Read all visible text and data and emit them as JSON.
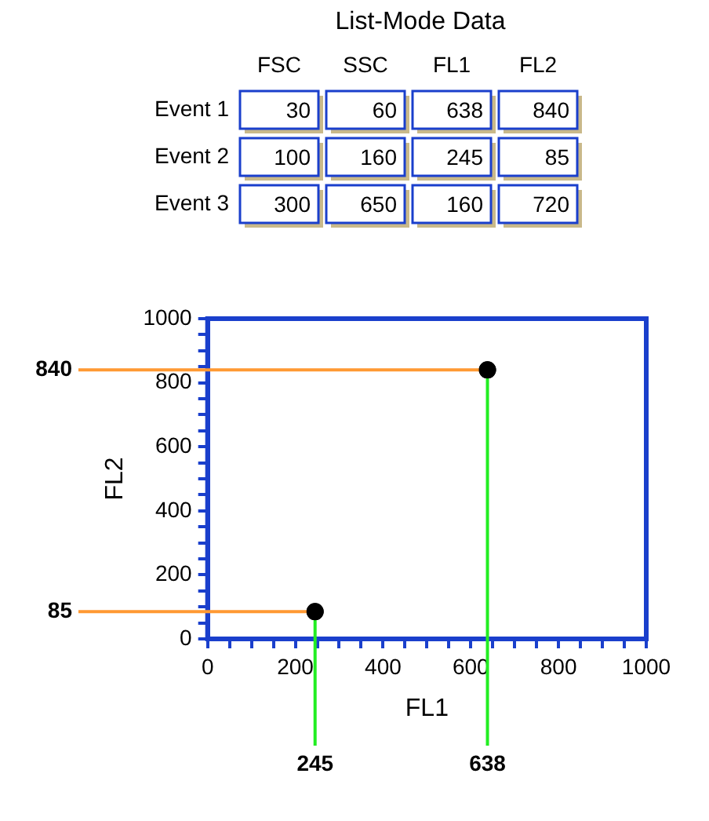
{
  "chart_data": [
    {
      "type": "heatmap",
      "title": "List-Mode Data",
      "categories": [
        "FSC",
        "SSC",
        "FL1",
        "FL2"
      ],
      "y_categories": [
        "Event 1",
        "Event 2",
        "Event 3"
      ],
      "cells": [
        [
          30,
          60,
          638,
          840
        ],
        [
          100,
          160,
          245,
          85
        ],
        [
          300,
          650,
          160,
          720
        ]
      ],
      "data_labels": true
    },
    {
      "type": "scatter",
      "xlabel": "FL1",
      "ylabel": "FL2",
      "x": [
        638,
        245
      ],
      "values": [
        840,
        85
      ],
      "color": "#000000",
      "marker": "circle",
      "xlim": [
        0,
        1000
      ],
      "ylim": [
        0,
        1000
      ],
      "xticks": [
        0,
        {
          "value": 50,
          "label": null
        },
        {
          "value": 100,
          "label": null
        },
        {
          "value": 150,
          "label": null
        },
        200,
        {
          "value": 250,
          "label": null
        },
        {
          "value": 300,
          "label": null
        },
        {
          "value": 350,
          "label": null
        },
        400,
        {
          "value": 450,
          "label": null
        },
        {
          "value": 500,
          "label": null
        },
        {
          "value": 550,
          "label": null
        },
        600,
        {
          "value": 650,
          "label": null
        },
        {
          "value": 700,
          "label": null
        },
        {
          "value": 750,
          "label": null
        },
        800,
        {
          "value": 850,
          "label": null
        },
        {
          "value": 900,
          "label": null
        },
        {
          "value": 950,
          "label": null
        },
        1000
      ],
      "yticks": [
        0,
        {
          "value": 50,
          "label": null
        },
        {
          "value": 100,
          "label": null
        },
        {
          "value": 150,
          "label": null
        },
        200,
        {
          "value": 250,
          "label": null
        },
        {
          "value": 300,
          "label": null
        },
        {
          "value": 350,
          "label": null
        },
        400,
        {
          "value": 450,
          "label": null
        },
        {
          "value": 500,
          "label": null
        },
        {
          "value": 550,
          "label": null
        },
        600,
        {
          "value": 650,
          "label": null
        },
        {
          "value": 700,
          "label": null
        },
        {
          "value": 750,
          "label": null
        },
        800,
        {
          "value": 850,
          "label": null
        },
        {
          "value": 900,
          "label": null
        },
        {
          "value": 950,
          "label": null
        },
        1000
      ],
      "grid": false,
      "ref_lines": [
        {
          "axis": "x",
          "value": 245,
          "label": "245",
          "color": "#22ee22"
        },
        {
          "axis": "x",
          "value": 638,
          "label": "638",
          "color": "#22ee22"
        },
        {
          "axis": "y",
          "value": 840,
          "label": "840",
          "color": "#ff9933"
        },
        {
          "axis": "y",
          "value": 85,
          "label": "85",
          "color": "#ff9933"
        }
      ]
    }
  ]
}
